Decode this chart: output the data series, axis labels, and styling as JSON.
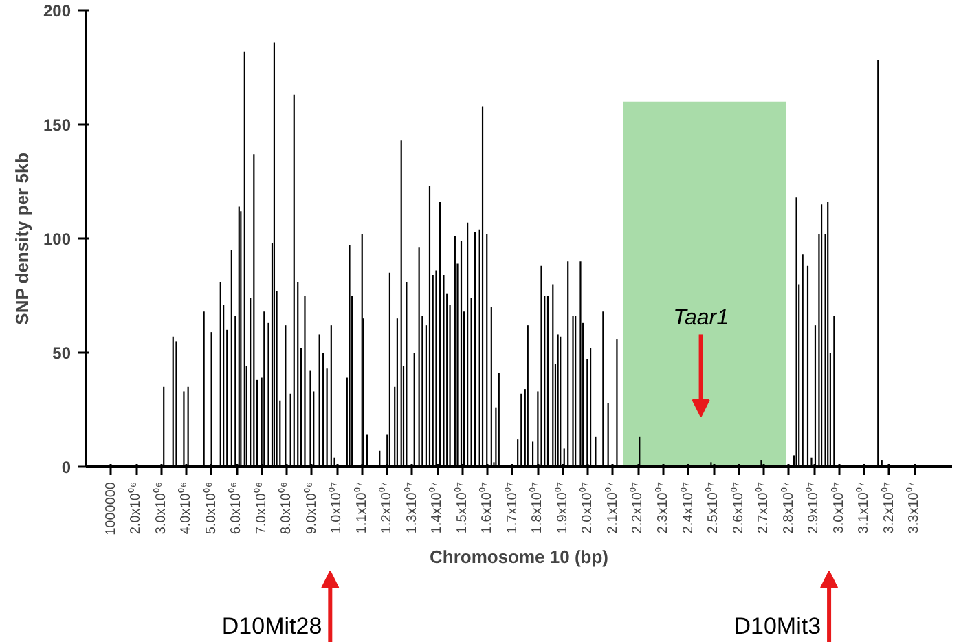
{
  "chart_data": {
    "type": "bar",
    "xlabel": "Chromosome 10 (bp)",
    "ylabel": "SNP density per 5kb",
    "x": [
      3100000,
      3470000,
      3600000,
      3900000,
      4070000,
      4700000,
      5000000,
      5360000,
      5480000,
      5620000,
      5800000,
      5950000,
      6100000,
      6170000,
      6320000,
      6400000,
      6550000,
      6690000,
      6820000,
      7000000,
      7100000,
      7270000,
      7420000,
      7500000,
      7600000,
      7730000,
      7950000,
      8150000,
      8290000,
      8440000,
      8570000,
      8720000,
      8940000,
      9070000,
      9300000,
      9450000,
      9600000,
      9770000,
      9900000,
      10400000,
      10500000,
      10600000,
      11000000,
      11050000,
      11200000,
      11700000,
      12000000,
      12100000,
      12300000,
      12400000,
      12560000,
      12650000,
      12770000,
      12900000,
      13080000,
      13270000,
      13400000,
      13550000,
      13690000,
      13820000,
      13950000,
      14100000,
      14250000,
      14380000,
      14500000,
      14700000,
      14800000,
      14950000,
      15060000,
      15200000,
      15350000,
      15500000,
      15680000,
      15800000,
      15970000,
      16150000,
      16250000,
      16330000,
      16450000,
      16700000,
      17200000,
      17340000,
      17490000,
      17600000,
      17800000,
      18000000,
      18140000,
      18270000,
      18400000,
      18600000,
      18700000,
      18800000,
      18900000,
      19050000,
      19200000,
      19400000,
      19500000,
      19700000,
      19800000,
      19970000,
      20100000,
      20300000,
      20600000,
      20800000,
      21000000,
      21150000,
      22050000,
      24900000,
      26900000,
      28200000,
      28300000,
      28400000,
      28550000,
      28750000,
      28900000,
      29050000,
      29200000,
      29300000,
      29450000,
      29550000,
      29650000,
      29800000,
      31550000,
      31700000
    ],
    "values": [
      35,
      57,
      55,
      33,
      35,
      68,
      59,
      81,
      71,
      60,
      95,
      66,
      114,
      112,
      182,
      44,
      74,
      137,
      38,
      39,
      68,
      63,
      98,
      186,
      77,
      29,
      62,
      32,
      163,
      81,
      52,
      75,
      42,
      33,
      58,
      50,
      43,
      62,
      4,
      39,
      97,
      75,
      102,
      65,
      14,
      7,
      14,
      85,
      35,
      65,
      143,
      44,
      81,
      null,
      50,
      96,
      66,
      62,
      123,
      84,
      86,
      116,
      84,
      76,
      71,
      101,
      89,
      99,
      68,
      107,
      74,
      103,
      104,
      158,
      102,
      70,
      2,
      26,
      41,
      null,
      12,
      32,
      34,
      62,
      11,
      33,
      88,
      75,
      75,
      80,
      45,
      58,
      57,
      8,
      90,
      66,
      66,
      90,
      63,
      47,
      52,
      13,
      68,
      28,
      null,
      56,
      13,
      2,
      3,
      5,
      118,
      80,
      93,
      88,
      4,
      62,
      102,
      115,
      102,
      116,
      50,
      66,
      178,
      3
    ],
    "color": "#000000",
    "xlim": [
      0,
      34500000
    ],
    "ylim": [
      0,
      200
    ],
    "xticks": [
      1000000,
      {
        "value": 2000000,
        "label": "2.0x10⁰⁶"
      },
      {
        "value": 3000000,
        "label": "3.0x10⁰⁶"
      },
      {
        "value": 4000000,
        "label": "4.0x10⁰⁶"
      },
      {
        "value": 5000000,
        "label": "5.0x10⁰⁶"
      },
      {
        "value": 6000000,
        "label": "6.0x10⁰⁶"
      },
      {
        "value": 7000000,
        "label": "7.0x10⁰⁶"
      },
      {
        "value": 8000000,
        "label": "8.0x10⁰⁶"
      },
      {
        "value": 9000000,
        "label": "9.0x10⁰⁶"
      },
      {
        "value": 10000000,
        "label": "1.0x10⁰⁷"
      },
      {
        "value": 11000000,
        "label": "1.1x10⁰⁷"
      },
      {
        "value": 12000000,
        "label": "1.2x10⁰⁷"
      },
      {
        "value": 13000000,
        "label": "1.3x10⁰⁷"
      },
      {
        "value": 14000000,
        "label": "1.4x10⁰⁷"
      },
      {
        "value": 15000000,
        "label": "1.5x10⁰⁷"
      },
      {
        "value": 16000000,
        "label": "1.6x10⁰⁷"
      },
      {
        "value": 17000000,
        "label": "1.7x10⁰⁷"
      },
      {
        "value": 18000000,
        "label": "1.8x10⁰⁷"
      },
      {
        "value": 19000000,
        "label": "1.9x10⁰⁷"
      },
      {
        "value": 20000000,
        "label": "2.0x10⁰⁷"
      },
      {
        "value": 21000000,
        "label": "2.1x10⁰⁷"
      },
      {
        "value": 22000000,
        "label": "2.2x10⁰⁷"
      },
      {
        "value": 23000000,
        "label": "2.3x10⁰⁷"
      },
      {
        "value": 24000000,
        "label": "2.4x10⁰⁷"
      },
      {
        "value": 25000000,
        "label": "2.5x10⁰⁷"
      },
      {
        "value": 26000000,
        "label": "2.6x10⁰⁷"
      },
      {
        "value": 27000000,
        "label": "2.7x10⁰⁷"
      },
      {
        "value": 28000000,
        "label": "2.8x10⁰⁷"
      },
      {
        "value": 29000000,
        "label": "2.9x10⁰⁷"
      },
      {
        "value": 30000000,
        "label": "3.0x10⁰⁷"
      },
      {
        "value": 31000000,
        "label": "3.1x10⁰⁷"
      },
      {
        "value": 32000000,
        "label": "3.2x10⁰⁷"
      },
      {
        "value": 33000000,
        "label": "3.3x10⁰⁷"
      }
    ],
    "yticks": [
      0,
      50,
      100,
      150,
      200
    ],
    "grid": false,
    "bands": [
      {
        "axis": "x",
        "from": 21400000,
        "to": 27900000,
        "color": "#a9dca9"
      }
    ],
    "annotations": [
      "Taar1",
      "D10Mit28",
      "D10Mit3"
    ]
  }
}
